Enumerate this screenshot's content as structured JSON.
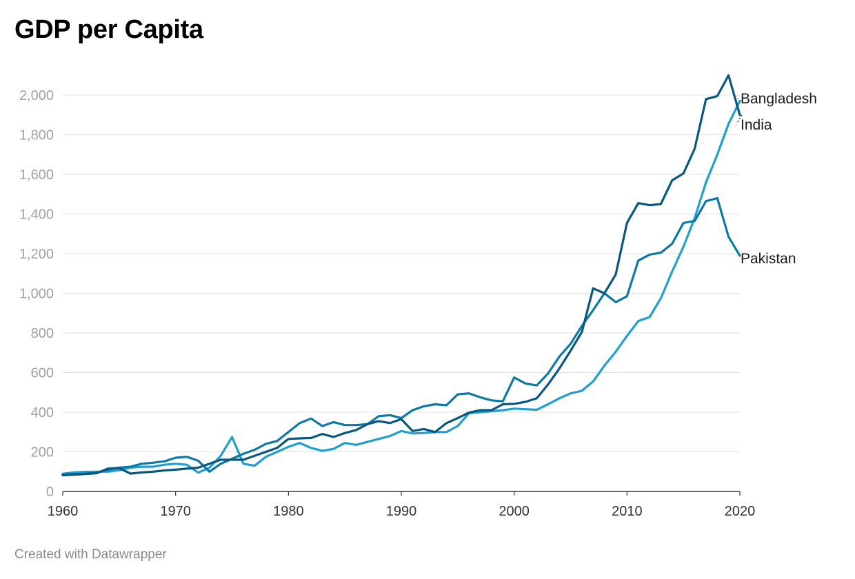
{
  "title": "GDP per Capita",
  "footer": "Created with Datawrapper",
  "chart_data": {
    "type": "line",
    "title": "GDP per Capita",
    "xlabel": "",
    "ylabel": "",
    "xlim": [
      1960,
      2020
    ],
    "ylim": [
      0,
      2100
    ],
    "grid": true,
    "legend": "direct labels at right end of lines",
    "yticks": [
      0,
      200,
      400,
      600,
      800,
      1000,
      1200,
      1400,
      1600,
      1800,
      2000
    ],
    "ytick_labels": [
      "0",
      "200",
      "400",
      "600",
      "800",
      "1,000",
      "1,200",
      "1,400",
      "1,600",
      "1,800",
      "2,000"
    ],
    "xticks": [
      1960,
      1970,
      1980,
      1990,
      2000,
      2010,
      2020
    ],
    "xtick_labels": [
      "1960",
      "1970",
      "1980",
      "1990",
      "2000",
      "2010",
      "2020"
    ],
    "x": [
      1960,
      1961,
      1962,
      1963,
      1964,
      1965,
      1966,
      1967,
      1968,
      1969,
      1970,
      1971,
      1972,
      1973,
      1974,
      1975,
      1976,
      1977,
      1978,
      1979,
      1980,
      1981,
      1982,
      1983,
      1984,
      1985,
      1986,
      1987,
      1988,
      1989,
      1990,
      1991,
      1992,
      1993,
      1994,
      1995,
      1996,
      1997,
      1998,
      1999,
      2000,
      2001,
      2002,
      2003,
      2004,
      2005,
      2006,
      2007,
      2008,
      2009,
      2010,
      2011,
      2012,
      2013,
      2014,
      2015,
      2016,
      2017,
      2018,
      2019,
      2020
    ],
    "series": [
      {
        "name": "Bangladesh",
        "color": "#1f9fd0",
        "values": [
          89,
          96,
          99,
          100,
          100,
          107,
          120,
          125,
          125,
          135,
          140,
          135,
          95,
          120,
          180,
          275,
          140,
          130,
          175,
          200,
          225,
          245,
          220,
          205,
          215,
          245,
          235,
          250,
          265,
          280,
          305,
          293,
          295,
          300,
          300,
          330,
          395,
          400,
          405,
          410,
          418,
          415,
          412,
          440,
          470,
          495,
          508,
          555,
          635,
          705,
          785,
          860,
          880,
          975,
          1110,
          1235,
          1380,
          1560,
          1700,
          1855,
          1970
        ]
      },
      {
        "name": "India",
        "color": "#08577f",
        "values": [
          82,
          85,
          88,
          92,
          115,
          118,
          90,
          96,
          100,
          106,
          110,
          115,
          120,
          140,
          160,
          160,
          160,
          180,
          200,
          220,
          265,
          268,
          270,
          290,
          275,
          295,
          310,
          340,
          355,
          345,
          365,
          305,
          315,
          300,
          345,
          370,
          398,
          410,
          410,
          440,
          442,
          452,
          470,
          540,
          620,
          710,
          805,
          1025,
          1000,
          1095,
          1355,
          1455,
          1445,
          1450,
          1570,
          1605,
          1730,
          1980,
          1995,
          2100,
          1900
        ]
      },
      {
        "name": "Pakistan",
        "color": "#0c78a5",
        "values": [
          85,
          88,
          90,
          95,
          110,
          120,
          125,
          140,
          145,
          152,
          170,
          175,
          155,
          100,
          140,
          165,
          190,
          210,
          240,
          255,
          300,
          345,
          368,
          330,
          350,
          335,
          335,
          340,
          380,
          385,
          370,
          410,
          430,
          440,
          435,
          490,
          495,
          475,
          460,
          455,
          575,
          545,
          535,
          595,
          680,
          745,
          835,
          915,
          1000,
          955,
          985,
          1165,
          1195,
          1205,
          1250,
          1355,
          1365,
          1465,
          1480,
          1285,
          1190
        ]
      }
    ]
  }
}
